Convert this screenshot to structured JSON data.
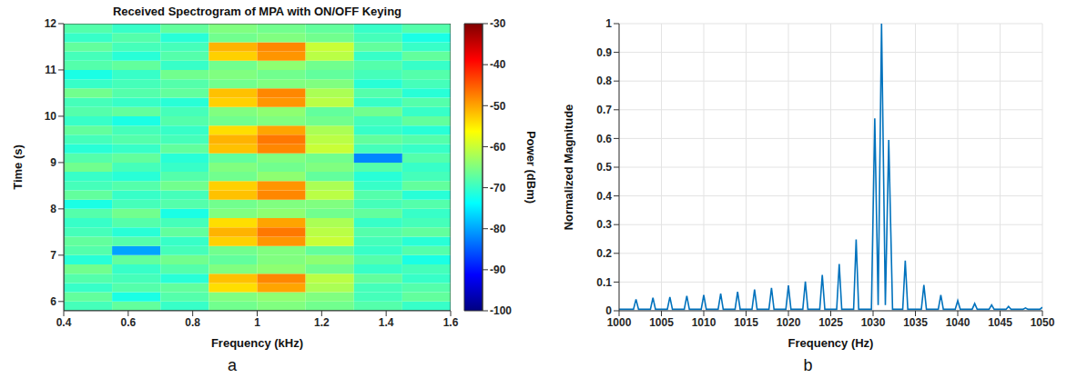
{
  "chart_data": [
    {
      "type": "heatmap",
      "label": "a",
      "title": "Received Spectrogram of MPA with ON/OFF Keying",
      "x_label": "Frequency (kHz)",
      "y_label": "Time (s)",
      "xlim": [
        0.4,
        1.6
      ],
      "xticks": [
        0.4,
        0.6,
        0.8,
        1,
        1.2,
        1.4,
        1.6
      ],
      "ylim": [
        5.8,
        12
      ],
      "yticks": [
        6,
        7,
        8,
        9,
        10,
        11,
        12
      ],
      "grid": false,
      "x_edges": [
        0.4,
        0.55,
        0.7,
        0.85,
        1.0,
        1.15,
        1.3,
        1.45,
        1.6
      ],
      "y_edges": [
        5.8,
        6.0,
        6.2,
        6.4,
        6.6,
        6.8,
        7.0,
        7.2,
        7.4,
        7.6,
        7.8,
        8.0,
        8.2,
        8.4,
        8.6,
        8.8,
        9.0,
        9.2,
        9.4,
        9.6,
        9.8,
        10.0,
        10.2,
        10.4,
        10.6,
        10.8,
        11.0,
        11.2,
        11.4,
        11.6,
        11.8,
        12.0
      ],
      "cells": [
        [
          -69,
          -67,
          -70,
          -66,
          -65,
          -66,
          -68,
          -70
        ],
        [
          -67,
          -72,
          -68,
          -65,
          -64,
          -65,
          -69,
          -67
        ],
        [
          -70,
          -68,
          -67,
          -54,
          -50,
          -62,
          -69,
          -68
        ],
        [
          -68,
          -69,
          -71,
          -52,
          -48,
          -61,
          -67,
          -70
        ],
        [
          -66,
          -70,
          -68,
          -65,
          -64,
          -66,
          -70,
          -69
        ],
        [
          -71,
          -67,
          -66,
          -67,
          -65,
          -64,
          -68,
          -72
        ],
        [
          -68,
          -80,
          -69,
          -66,
          -65,
          -67,
          -70,
          -68
        ],
        [
          -67,
          -68,
          -70,
          -53,
          -49,
          -60,
          -69,
          -71
        ],
        [
          -69,
          -71,
          -67,
          -51,
          -47,
          -61,
          -68,
          -67
        ],
        [
          -70,
          -68,
          -69,
          -54,
          -50,
          -62,
          -70,
          -69
        ],
        [
          -68,
          -66,
          -72,
          -65,
          -64,
          -66,
          -67,
          -70
        ],
        [
          -72,
          -69,
          -68,
          -66,
          -65,
          -65,
          -69,
          -68
        ],
        [
          -67,
          -70,
          -69,
          -52,
          -48,
          -61,
          -68,
          -71
        ],
        [
          -69,
          -68,
          -66,
          -53,
          -49,
          -62,
          -70,
          -67
        ],
        [
          -70,
          -71,
          -68,
          -66,
          -64,
          -67,
          -71,
          -69
        ],
        [
          -66,
          -69,
          -70,
          -65,
          -66,
          -65,
          -68,
          -70
        ],
        [
          -68,
          -67,
          -71,
          -67,
          -65,
          -66,
          -82,
          -68
        ],
        [
          -71,
          -70,
          -67,
          -52,
          -48,
          -60,
          -69,
          -70
        ],
        [
          -69,
          -68,
          -69,
          -51,
          -47,
          -61,
          -67,
          -68
        ],
        [
          -67,
          -69,
          -70,
          -54,
          -50,
          -62,
          -70,
          -71
        ],
        [
          -70,
          -72,
          -68,
          -66,
          -65,
          -66,
          -69,
          -67
        ],
        [
          -68,
          -67,
          -69,
          -65,
          -64,
          -67,
          -66,
          -70
        ],
        [
          -69,
          -70,
          -71,
          -53,
          -49,
          -61,
          -70,
          -68
        ],
        [
          -66,
          -68,
          -67,
          -52,
          -48,
          -62,
          -68,
          -71
        ],
        [
          -70,
          -69,
          -68,
          -66,
          -65,
          -65,
          -71,
          -69
        ],
        [
          -72,
          -70,
          -66,
          -65,
          -66,
          -67,
          -69,
          -68
        ],
        [
          -68,
          -67,
          -70,
          -66,
          -64,
          -66,
          -68,
          -70
        ],
        [
          -69,
          -71,
          -68,
          -53,
          -49,
          -61,
          -70,
          -67
        ],
        [
          -67,
          -69,
          -69,
          -51,
          -48,
          -60,
          -67,
          -70
        ],
        [
          -70,
          -68,
          -71,
          -66,
          -65,
          -66,
          -69,
          -72
        ],
        [
          -68,
          -70,
          -67,
          -65,
          -66,
          -67,
          -70,
          -68
        ]
      ],
      "colorbar": {
        "label": "Power (dBm)",
        "range": [
          -100,
          -30
        ],
        "ticks": [
          -100,
          -90,
          -80,
          -70,
          -60,
          -50,
          -40,
          -30
        ]
      }
    },
    {
      "type": "line",
      "label": "b",
      "x_label": "Frequency (Hz)",
      "y_label": "Normalized Magnitude",
      "xlim": [
        1000,
        1050
      ],
      "xticks": [
        1000,
        1005,
        1010,
        1015,
        1020,
        1025,
        1030,
        1035,
        1040,
        1045,
        1050
      ],
      "ylim": [
        0,
        1
      ],
      "yticks": [
        0,
        0.1,
        0.2,
        0.3,
        0.4,
        0.5,
        0.6,
        0.7,
        0.8,
        0.9,
        1
      ],
      "grid": true,
      "color": "#0072bd",
      "x": [
        1000,
        1001.7,
        1002,
        1002.3,
        1003.7,
        1004,
        1004.3,
        1005.7,
        1006,
        1006.3,
        1007.7,
        1008,
        1008.3,
        1009.7,
        1010,
        1010.3,
        1011.7,
        1012,
        1012.3,
        1013.7,
        1014,
        1014.3,
        1015.7,
        1016,
        1016.3,
        1017.7,
        1018,
        1018.3,
        1019.7,
        1020,
        1020.3,
        1021.7,
        1022,
        1022.3,
        1023.7,
        1024,
        1024.3,
        1025.7,
        1026,
        1026.3,
        1027.7,
        1028,
        1028.3,
        1029.8,
        1030.2,
        1030.6,
        1031,
        1031.45,
        1031.85,
        1032.3,
        1033.5,
        1033.8,
        1034.1,
        1035.7,
        1036,
        1036.3,
        1037.7,
        1038,
        1038.3,
        1039.7,
        1040,
        1040.3,
        1041.7,
        1042,
        1042.3,
        1043.7,
        1044,
        1044.3,
        1045.7,
        1046,
        1046.3,
        1047.7,
        1048,
        1048.3,
        1049.7,
        1050
      ],
      "values": [
        0.005,
        0.005,
        0.04,
        0.005,
        0.005,
        0.045,
        0.005,
        0.005,
        0.048,
        0.005,
        0.005,
        0.052,
        0.005,
        0.005,
        0.055,
        0.005,
        0.005,
        0.06,
        0.005,
        0.005,
        0.066,
        0.005,
        0.005,
        0.074,
        0.005,
        0.005,
        0.08,
        0.005,
        0.005,
        0.088,
        0.005,
        0.005,
        0.102,
        0.005,
        0.005,
        0.125,
        0.005,
        0.005,
        0.163,
        0.005,
        0.005,
        0.248,
        0.005,
        0.005,
        0.67,
        0.02,
        1,
        0.02,
        0.595,
        0.005,
        0.005,
        0.175,
        0.005,
        0.005,
        0.09,
        0.005,
        0.005,
        0.055,
        0.005,
        0.005,
        0.035,
        0.005,
        0.005,
        0.025,
        0.005,
        0.005,
        0.02,
        0.005,
        0.005,
        0.015,
        0.005,
        0.005,
        0.01,
        0.005,
        0.005,
        0.012
      ]
    }
  ]
}
